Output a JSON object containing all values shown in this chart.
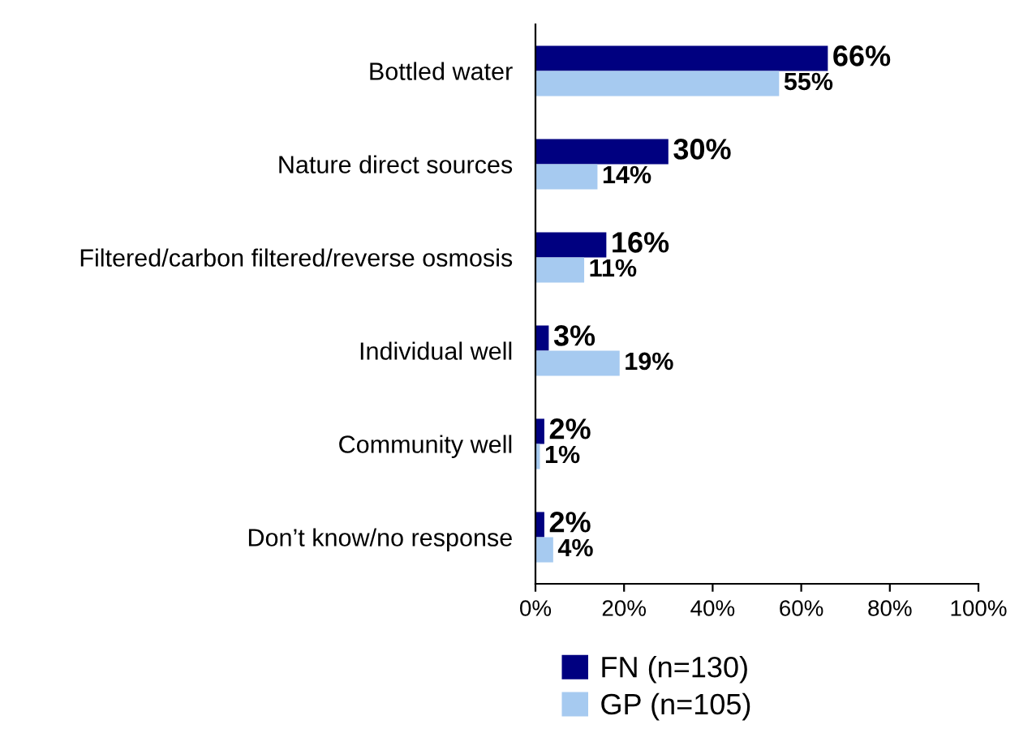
{
  "chart_data": {
    "type": "bar",
    "orientation": "horizontal",
    "categories": [
      "Bottled water",
      "Nature direct sources",
      "Filtered/carbon filtered/reverse osmosis",
      "Individual well",
      "Community well",
      "Don’t know/no response"
    ],
    "series": [
      {
        "name": "FN (n=130)",
        "color": "#000080",
        "values": [
          66,
          30,
          16,
          3,
          2,
          2
        ],
        "value_labels": [
          "66%",
          "30%",
          "16%",
          "3%",
          "2%",
          "2%"
        ]
      },
      {
        "name": "GP (n=105)",
        "color": "#a6caf0",
        "values": [
          55,
          14,
          11,
          19,
          1,
          4
        ],
        "value_labels": [
          "55%",
          "14%",
          "11%",
          "19%",
          "1%",
          "4%"
        ]
      }
    ],
    "xlim": [
      0,
      100
    ],
    "xticks": [
      {
        "value": 0,
        "label": "0%"
      },
      {
        "value": 20,
        "label": "20%"
      },
      {
        "value": 40,
        "label": "40%"
      },
      {
        "value": 60,
        "label": "60%"
      },
      {
        "value": 80,
        "label": "80%"
      },
      {
        "value": 100,
        "label": "100%"
      }
    ],
    "grid": false,
    "legend": "bottom"
  }
}
